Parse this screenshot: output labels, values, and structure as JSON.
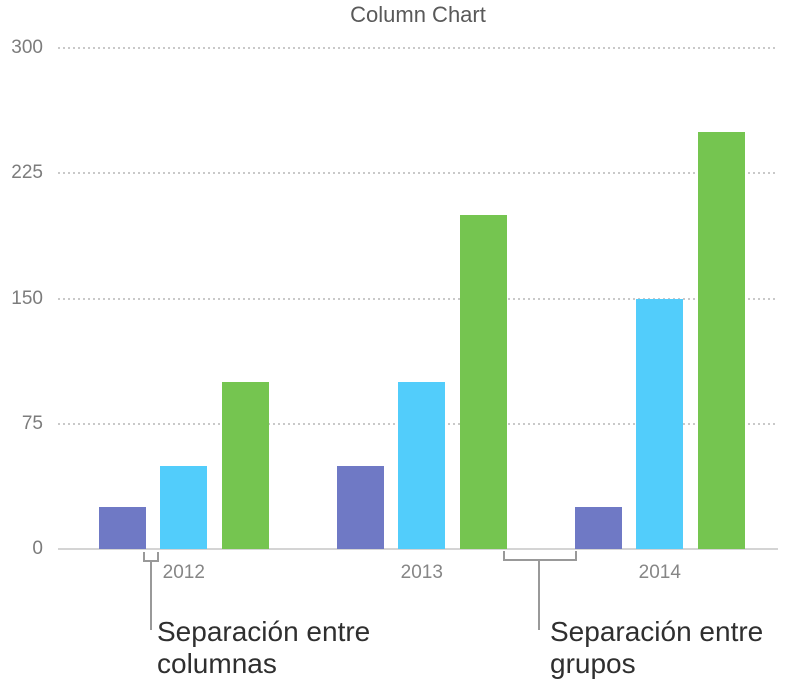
{
  "chart_data": {
    "type": "bar",
    "title": "Column Chart",
    "categories": [
      "2012",
      "2013",
      "2014"
    ],
    "series": [
      {
        "name": "purple-series",
        "color": "#6f79c5",
        "values": [
          25,
          50,
          25
        ]
      },
      {
        "name": "blue-series",
        "color": "#52cdfb",
        "values": [
          50,
          100,
          150
        ]
      },
      {
        "name": "green-series",
        "color": "#75c550",
        "values": [
          100,
          200,
          250
        ]
      }
    ],
    "ylim": [
      0,
      300
    ],
    "y_ticks": [
      0,
      75,
      150,
      225,
      300
    ],
    "xlabel": "",
    "ylabel": "",
    "grid": "horizontal dotted",
    "legend": "none",
    "gridline_color": "#c9c9c9",
    "axis_line_color": "#d4d4d4",
    "tick_label_color": "#7c7c7c"
  },
  "annotations": {
    "column_gap_label": "Separación entre\ncolumnas",
    "group_gap_label": "Separación entre\ngrupos",
    "callout_color": "#999999"
  }
}
